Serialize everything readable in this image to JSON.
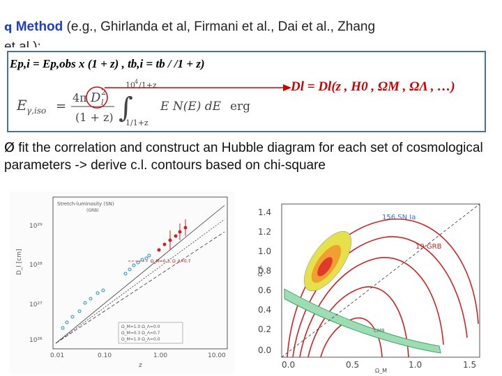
{
  "slide": {
    "title_bullet": "q",
    "title_method": "Method",
    "title_rest": " (e.g., Ghirlanda et al, Firmani et al., Dai et al., Zhang",
    "title_cont": "et al.):",
    "eq1": "Ep,i = Ep,obs x (1 + z) , tb,i = tb / /1 + z)",
    "eq_integral": "Eγ,iso = 4π D_l^2 / (1 + z) ∫ E N(E) dE erg",
    "eq_integral_parts": {
      "lhs": "E",
      "lhs_sub": "γ,iso",
      "eq": "=",
      "num": "4π",
      "dl": "D",
      "dl_sub": "l",
      "dl_sup": "2",
      "den": "(1 + z)",
      "upper": "10",
      "upper_sup": "4",
      "upper_rest": "/1+z",
      "lower": "1/1+z",
      "integrand": "E N(E) dE",
      "unit": "erg"
    },
    "eq2": "Dl = Dl(z , H0 , ΩM , ΩΛ , …)",
    "bullet_symbol": "Ø",
    "bullet_text": "fit the correlation and construct an Hubble diagram for each set of cosmological parameters -> derive c.l. contours based on chi-square"
  },
  "colors": {
    "accent_blue": "#1f3fbf",
    "box_border": "#4a6fa6",
    "eq_red": "#cc0000"
  },
  "left_plot": {
    "legend_title": "Stretch-luminosity (SN)",
    "legend_sub": "(GRB)",
    "ylabel": "D_l [cm]",
    "xlabel": "z",
    "yticks": [
      "10²⁹",
      "10²⁸",
      "10²⁷",
      "10²⁶"
    ],
    "xticks": [
      "0.01",
      "0.10",
      "1.00",
      "10.00"
    ],
    "annotation": "Ω_M=0.3, Ω_Λ=0.7",
    "legend_lines": [
      "Ω_M=1.0 Ω_Λ=0.0",
      "Ω_M=0.3 Ω_Λ=0.7",
      "Ω_M=1.0 Ω_Λ=0.0"
    ]
  },
  "right_plot": {
    "ylabel": "Ω_Λ",
    "xlabel": "Ω_M",
    "yticks": [
      "1.4",
      "1.2",
      "1.0",
      "0.8",
      "0.6",
      "0.4",
      "0.2",
      "0.0"
    ],
    "xticks": [
      "0.0",
      "0.5",
      "1.0",
      "1.5"
    ],
    "label_sn": "156 SN Ia",
    "label_grb": "19 GRB",
    "label_cmb": "CMB"
  }
}
